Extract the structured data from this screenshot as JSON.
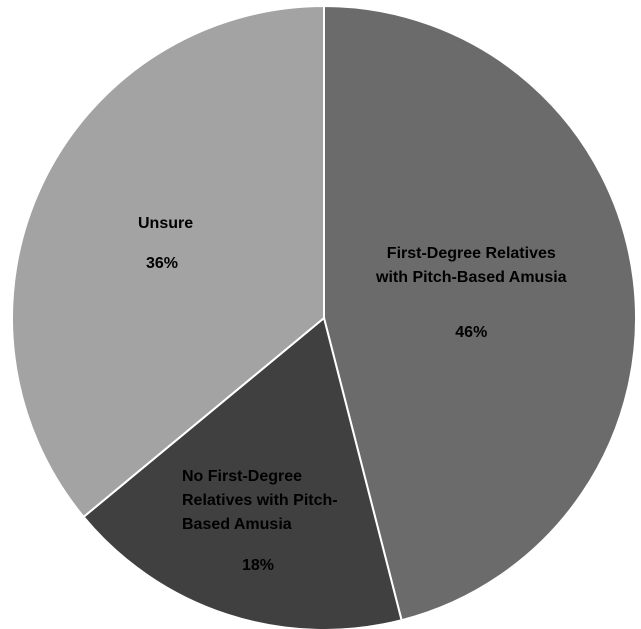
{
  "chart_data": {
    "type": "pie",
    "title": "",
    "start_angle_deg": 0,
    "direction": "clockwise",
    "slices": [
      {
        "label_lines": [
          "First-Degree Relatives",
          "with Pitch-Based Amusia"
        ],
        "value": 46,
        "value_label": "46%",
        "color": "#6b6b6b"
      },
      {
        "label_lines": [
          "No First-Degree",
          "Relatives with Pitch-",
          "Based Amusia"
        ],
        "value": 18,
        "value_label": "18%",
        "color": "#404040"
      },
      {
        "label_lines": [
          "Unsure"
        ],
        "value": 36,
        "value_label": "36%",
        "color": "#a3a3a3"
      }
    ],
    "legend": "none",
    "slice_border_color": "#ffffff"
  }
}
